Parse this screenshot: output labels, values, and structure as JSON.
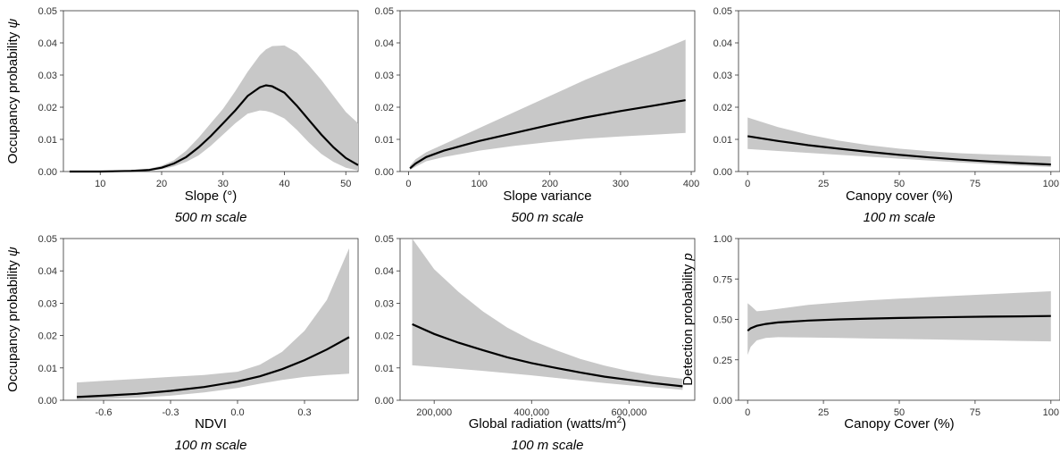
{
  "figure": {
    "band_color": "#c8c8c8",
    "line_color": "#000000"
  },
  "chart_data": [
    {
      "type": "line",
      "xlabel": "Slope (°)",
      "ylabel": "Occupancy probability",
      "ylabel_symbol": "ψ",
      "scale_note": "500 m scale",
      "xlim": [
        4,
        52
      ],
      "ylim": [
        0,
        0.05
      ],
      "x_ticks": [
        10,
        20,
        30,
        40,
        50
      ],
      "x_tick_labels": [
        "10",
        "20",
        "30",
        "40",
        "50"
      ],
      "y_ticks": [
        0,
        0.01,
        0.02,
        0.03,
        0.04,
        0.05
      ],
      "y_tick_labels": [
        "0.00",
        "0.01",
        "0.02",
        "0.03",
        "0.04",
        "0.05"
      ],
      "series": [
        {
          "x": [
            5,
            10,
            15,
            18,
            20,
            22,
            24,
            26,
            28,
            30,
            32,
            34,
            36,
            37,
            38,
            40,
            42,
            44,
            46,
            48,
            50,
            52
          ],
          "y": [
            0,
            0,
            0.0002,
            0.0005,
            0.0012,
            0.0025,
            0.0045,
            0.0075,
            0.011,
            0.015,
            0.019,
            0.0235,
            0.0262,
            0.0268,
            0.0265,
            0.0245,
            0.0205,
            0.016,
            0.0115,
            0.0075,
            0.0042,
            0.002
          ],
          "lower": [
            0,
            0,
            0.0001,
            0.0003,
            0.0007,
            0.0016,
            0.003,
            0.005,
            0.008,
            0.0115,
            0.015,
            0.018,
            0.019,
            0.0188,
            0.0183,
            0.0165,
            0.013,
            0.009,
            0.0055,
            0.003,
            0.0012,
            0.0003
          ],
          "upper": [
            0.0001,
            0.0001,
            0.0005,
            0.0009,
            0.0018,
            0.0035,
            0.0065,
            0.0105,
            0.015,
            0.0195,
            0.025,
            0.031,
            0.0362,
            0.038,
            0.039,
            0.0392,
            0.037,
            0.033,
            0.0285,
            0.0235,
            0.0185,
            0.015
          ]
        }
      ]
    },
    {
      "type": "line",
      "xlabel": "Slope variance",
      "ylabel": "",
      "scale_note": "500 m scale",
      "xlim": [
        -12,
        405
      ],
      "ylim": [
        0,
        0.05
      ],
      "x_ticks": [
        0,
        100,
        200,
        300,
        400
      ],
      "x_tick_labels": [
        "0",
        "100",
        "200",
        "300",
        "400"
      ],
      "y_ticks": [
        0,
        0.01,
        0.02,
        0.03,
        0.04,
        0.05
      ],
      "y_tick_labels": [
        "0.00",
        "0.01",
        "0.02",
        "0.03",
        "0.04",
        "0.05"
      ],
      "series": [
        {
          "x": [
            2,
            10,
            25,
            50,
            75,
            100,
            150,
            200,
            250,
            300,
            350,
            392
          ],
          "y": [
            0.001,
            0.0025,
            0.0045,
            0.0065,
            0.008,
            0.0095,
            0.012,
            0.0145,
            0.0168,
            0.0188,
            0.0206,
            0.0222
          ],
          "lower": [
            0.0005,
            0.0015,
            0.0032,
            0.0045,
            0.0055,
            0.0065,
            0.008,
            0.0092,
            0.0102,
            0.0109,
            0.0115,
            0.012
          ],
          "upper": [
            0.0018,
            0.0038,
            0.006,
            0.0085,
            0.011,
            0.0135,
            0.0185,
            0.0235,
            0.0285,
            0.033,
            0.0372,
            0.041
          ]
        }
      ]
    },
    {
      "type": "line",
      "xlabel": "Canopy cover (%)",
      "ylabel": "",
      "scale_note": "100 m scale",
      "xlim": [
        -3,
        103
      ],
      "ylim": [
        0,
        0.05
      ],
      "x_ticks": [
        0,
        25,
        50,
        75,
        100
      ],
      "x_tick_labels": [
        "0",
        "25",
        "50",
        "75",
        "100"
      ],
      "y_ticks": [
        0,
        0.01,
        0.02,
        0.03,
        0.04,
        0.05
      ],
      "y_tick_labels": [
        "0.00",
        "0.01",
        "0.02",
        "0.03",
        "0.04",
        "0.05"
      ],
      "series": [
        {
          "x": [
            0,
            10,
            20,
            30,
            40,
            50,
            60,
            70,
            80,
            90,
            100
          ],
          "y": [
            0.011,
            0.0095,
            0.0082,
            0.0071,
            0.0061,
            0.0052,
            0.0044,
            0.0037,
            0.0031,
            0.0026,
            0.0022
          ],
          "lower": [
            0.007,
            0.0064,
            0.0058,
            0.0052,
            0.0046,
            0.004,
            0.0034,
            0.0028,
            0.0023,
            0.0018,
            0.0014
          ],
          "upper": [
            0.0168,
            0.0138,
            0.0115,
            0.0096,
            0.0082,
            0.0071,
            0.0063,
            0.0057,
            0.0053,
            0.005,
            0.0047
          ]
        }
      ]
    },
    {
      "type": "line",
      "xlabel": "NDVI",
      "ylabel": "Occupancy probability",
      "ylabel_symbol": "ψ",
      "scale_note": "100 m scale",
      "xlim": [
        -0.78,
        0.54
      ],
      "ylim": [
        0,
        0.05
      ],
      "x_ticks": [
        -0.6,
        -0.3,
        0.0,
        0.3
      ],
      "x_tick_labels": [
        "-0.6",
        "-0.3",
        "0.0",
        "0.3"
      ],
      "y_ticks": [
        0,
        0.01,
        0.02,
        0.03,
        0.04,
        0.05
      ],
      "y_tick_labels": [
        "0.00",
        "0.01",
        "0.02",
        "0.03",
        "0.04",
        "0.05"
      ],
      "series": [
        {
          "x": [
            -0.72,
            -0.6,
            -0.45,
            -0.3,
            -0.15,
            0.0,
            0.1,
            0.2,
            0.3,
            0.4,
            0.5
          ],
          "y": [
            0.001,
            0.0014,
            0.002,
            0.0029,
            0.0041,
            0.0058,
            0.0074,
            0.0096,
            0.0124,
            0.0157,
            0.0195
          ],
          "lower": [
            0.0002,
            0.0004,
            0.0008,
            0.0014,
            0.0024,
            0.0038,
            0.0051,
            0.0063,
            0.0072,
            0.0078,
            0.0082
          ],
          "upper": [
            0.0055,
            0.006,
            0.0066,
            0.0072,
            0.0078,
            0.0088,
            0.011,
            0.015,
            0.0215,
            0.031,
            0.047
          ]
        }
      ]
    },
    {
      "type": "line",
      "xlabel": "Global radiation (watts/m",
      "xlabel_sup": "2",
      "xlabel_end": ")",
      "ylabel": "",
      "scale_note": "100 m scale",
      "xlim": [
        130000,
        735000
      ],
      "ylim": [
        0,
        0.05
      ],
      "x_ticks": [
        200000,
        400000,
        600000
      ],
      "x_tick_labels": [
        "200,000",
        "400,000",
        "600,000"
      ],
      "y_ticks": [
        0,
        0.01,
        0.02,
        0.03,
        0.04,
        0.05
      ],
      "y_tick_labels": [
        "0.00",
        "0.01",
        "0.02",
        "0.03",
        "0.04",
        "0.05"
      ],
      "series": [
        {
          "x": [
            155000,
            200000,
            250000,
            300000,
            350000,
            400000,
            450000,
            500000,
            550000,
            600000,
            650000,
            710000
          ],
          "y": [
            0.0235,
            0.0205,
            0.0178,
            0.0155,
            0.0133,
            0.0115,
            0.01,
            0.0086,
            0.0073,
            0.0063,
            0.0053,
            0.0043
          ],
          "lower": [
            0.0108,
            0.0103,
            0.0097,
            0.0091,
            0.0084,
            0.0077,
            0.0069,
            0.0061,
            0.0053,
            0.0046,
            0.004,
            0.0032
          ],
          "upper": [
            0.05,
            0.0405,
            0.0335,
            0.0275,
            0.0225,
            0.0185,
            0.0155,
            0.0128,
            0.0107,
            0.009,
            0.0077,
            0.0066
          ]
        }
      ]
    },
    {
      "type": "line",
      "xlabel": "Canopy Cover (%)",
      "ylabel": "Detection probability",
      "ylabel_symbol": "p",
      "scale_note": "",
      "xlim": [
        -3,
        103
      ],
      "ylim": [
        0,
        1
      ],
      "x_ticks": [
        0,
        25,
        50,
        75,
        100
      ],
      "x_tick_labels": [
        "0",
        "25",
        "50",
        "75",
        "100"
      ],
      "y_ticks": [
        0,
        0.25,
        0.5,
        0.75,
        1.0
      ],
      "y_tick_labels": [
        "0.00",
        "0.25",
        "0.50",
        "0.75",
        "1.00"
      ],
      "series": [
        {
          "x": [
            0,
            1,
            3,
            6,
            10,
            20,
            30,
            40,
            50,
            60,
            70,
            80,
            90,
            100
          ],
          "y": [
            0.43,
            0.445,
            0.46,
            0.472,
            0.481,
            0.493,
            0.5,
            0.505,
            0.509,
            0.512,
            0.515,
            0.517,
            0.519,
            0.521
          ],
          "lower": [
            0.28,
            0.33,
            0.37,
            0.385,
            0.39,
            0.388,
            0.385,
            0.382,
            0.379,
            0.376,
            0.373,
            0.37,
            0.367,
            0.364
          ],
          "upper": [
            0.6,
            0.585,
            0.55,
            0.555,
            0.565,
            0.59,
            0.605,
            0.618,
            0.628,
            0.638,
            0.647,
            0.656,
            0.665,
            0.674
          ]
        }
      ]
    }
  ]
}
